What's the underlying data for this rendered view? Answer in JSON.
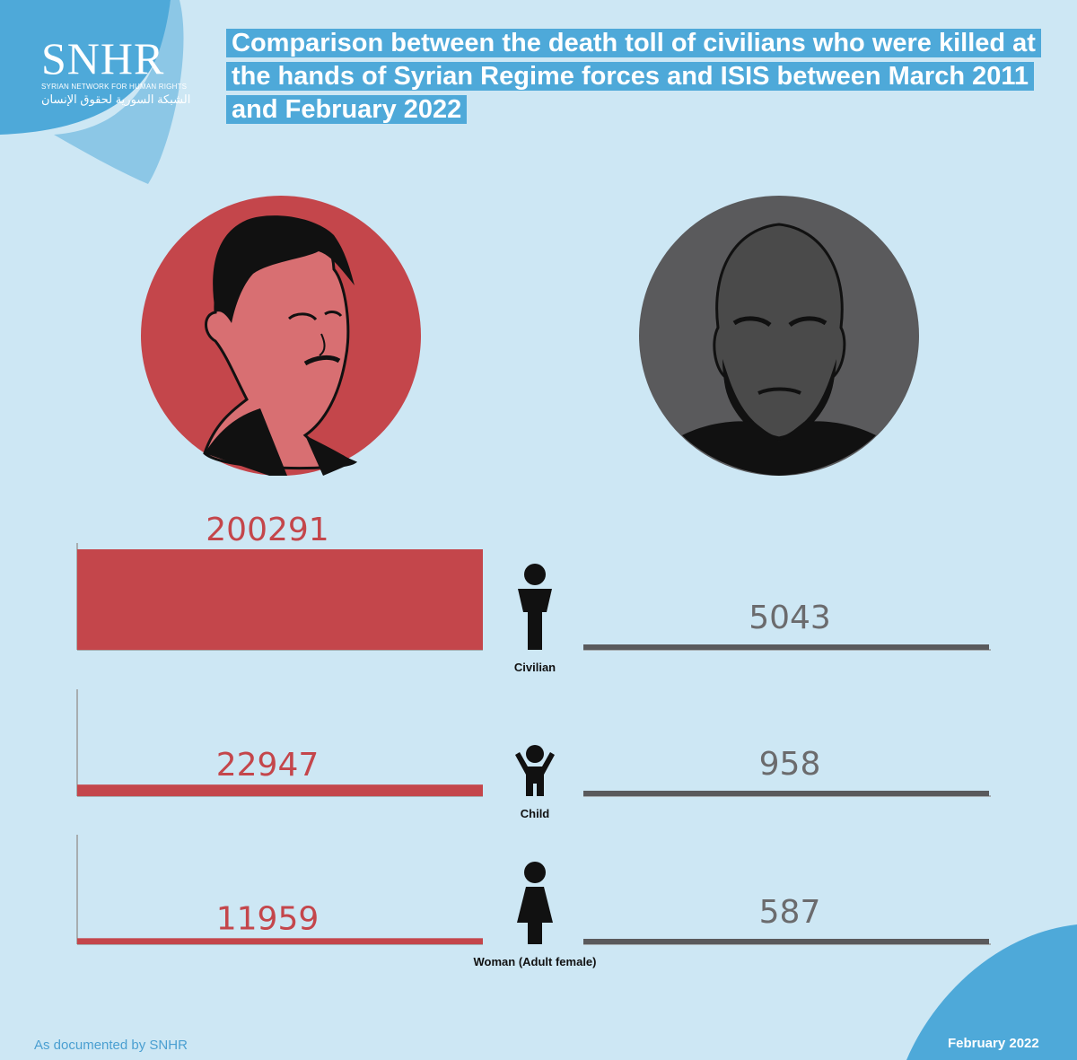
{
  "header": {
    "logo_name": "SNHR",
    "logo_sub": "SYRIAN NETWORK FOR HUMAN RIGHTS",
    "logo_arabic": "الشبكة السورية لحقوق الإنسان",
    "title": "Comparison between the death toll of civilians who were killed at the hands of Syrian Regime forces and ISIS between March 2011 and February 2022"
  },
  "footer": {
    "source": "As documented by SNHR",
    "date": "February 2022"
  },
  "colors": {
    "background": "#cde7f4",
    "regime": "#c4464b",
    "isis": "#5a5a5c",
    "accent": "#4ea9d9"
  },
  "chart_data": {
    "type": "bar",
    "categories": [
      "Civilian",
      "Child",
      "Woman (Adult female)"
    ],
    "category_icons": [
      "person-icon",
      "child-icon",
      "woman-icon"
    ],
    "series": [
      {
        "values": [
          200291,
          22947,
          11959
        ],
        "color": "#c4464b"
      },
      {
        "values": [
          5043,
          958,
          587
        ],
        "color": "#5a5a5c"
      }
    ]
  }
}
